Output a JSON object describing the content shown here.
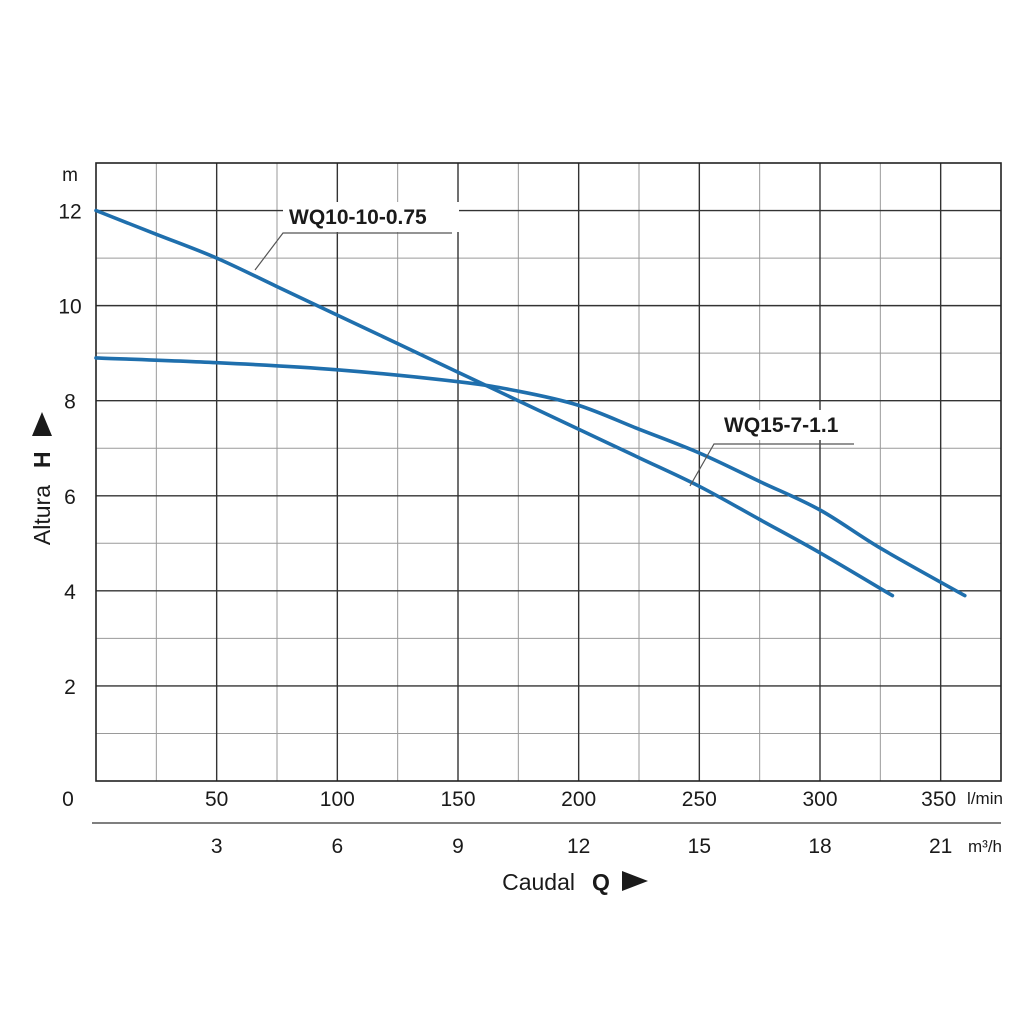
{
  "chart_data": {
    "type": "line",
    "x_unit_primary": "l/min",
    "x_unit_secondary": "m³/h",
    "y_unit": "m",
    "xlabel": "Caudal",
    "xlabel_symbol": "Q",
    "ylabel": "Altura",
    "ylabel_symbol": "H",
    "origin_label": "0",
    "xlim": [
      0,
      375
    ],
    "ylim": [
      0,
      13
    ],
    "x_ticks": [
      "50",
      "100",
      "150",
      "200",
      "250",
      "300",
      "350"
    ],
    "x_ticks_values": [
      50,
      100,
      150,
      200,
      250,
      300,
      350
    ],
    "x2_ticks": [
      "3",
      "6",
      "9",
      "12",
      "15",
      "18",
      "21"
    ],
    "x2_ticks_values": [
      3,
      6,
      9,
      12,
      15,
      18,
      21
    ],
    "y_ticks": [
      "2",
      "4",
      "6",
      "8",
      "10",
      "12"
    ],
    "y_ticks_values": [
      2,
      4,
      6,
      8,
      10,
      12
    ],
    "grid": true,
    "series": [
      {
        "name": "WQ10-10-0.75",
        "color": "#1f6fad",
        "x": [
          0,
          25,
          50,
          75,
          100,
          125,
          150,
          175,
          200,
          225,
          250,
          275,
          300,
          330
        ],
        "y": [
          12.0,
          11.5,
          11.0,
          10.4,
          9.8,
          9.2,
          8.6,
          8.0,
          7.4,
          6.8,
          6.2,
          5.5,
          4.8,
          3.9
        ]
      },
      {
        "name": "WQ15-7-1.1",
        "color": "#1f6fad",
        "x": [
          0,
          50,
          100,
          150,
          175,
          200,
          225,
          250,
          275,
          300,
          325,
          360
        ],
        "y": [
          8.9,
          8.8,
          8.65,
          8.4,
          8.2,
          7.9,
          7.4,
          6.9,
          6.3,
          5.7,
          4.9,
          3.9
        ]
      }
    ]
  }
}
